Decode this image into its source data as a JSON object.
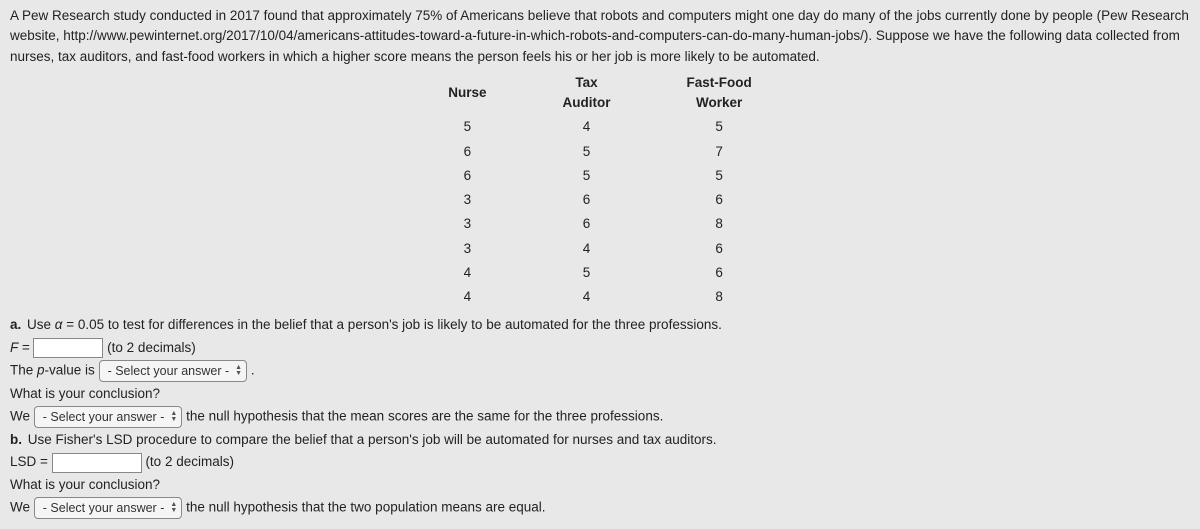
{
  "intro": "A Pew Research study conducted in 2017 found that approximately 75% of Americans believe that robots and computers might one day do many of the jobs currently done by people (Pew Research website, http://www.pewinternet.org/2017/10/04/americans-attitudes-toward-a-future-in-which-robots-and-computers-can-do-many-human-jobs/). Suppose we have the following data collected from nurses, tax auditors, and fast-food workers in which a higher score means the person feels his or her job is more likely to be automated.",
  "table": {
    "columns": [
      "Nurse",
      "Tax Auditor",
      "Fast-Food Worker"
    ],
    "rows": [
      [
        "5",
        "4",
        "5"
      ],
      [
        "6",
        "5",
        "7"
      ],
      [
        "6",
        "5",
        "5"
      ],
      [
        "3",
        "6",
        "6"
      ],
      [
        "3",
        "6",
        "8"
      ],
      [
        "3",
        "4",
        "6"
      ],
      [
        "4",
        "5",
        "6"
      ],
      [
        "4",
        "4",
        "8"
      ]
    ]
  },
  "partA": {
    "label": "a.",
    "text": "Use α = 0.05 to test for differences in the belief that a person's job is likely to be automated for the three professions.",
    "F_label": "F =",
    "F_hint": "(to 2 decimals)",
    "pvalue_prefix": "The p-value is",
    "select_placeholder": "- Select your answer -",
    "period": ".",
    "conclusion_q": "What is your conclusion?",
    "we": "We",
    "concl_tail": "the null hypothesis that the mean scores are the same for the three professions."
  },
  "partB": {
    "label": "b.",
    "text": "Use Fisher's LSD procedure to compare the belief that a person's job will be automated for nurses and tax auditors.",
    "LSD_label": "LSD =",
    "LSD_hint": "(to 2 decimals)",
    "conclusion_q": "What is your conclusion?",
    "we": "We",
    "select_placeholder": "- Select your answer -",
    "concl_tail": "the null hypothesis that the two population means are equal."
  }
}
